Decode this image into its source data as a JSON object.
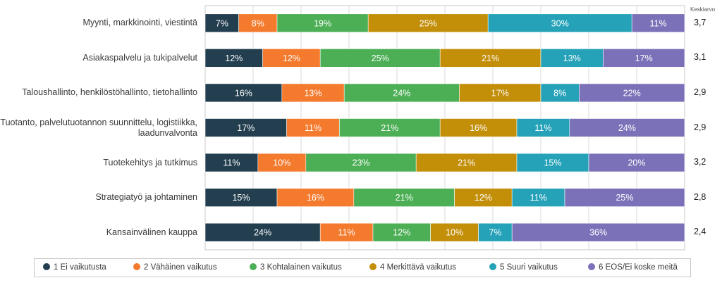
{
  "chart_data": {
    "type": "bar",
    "orientation": "horizontal",
    "stacked": true,
    "normalized_percent": true,
    "categories": [
      "Myynti, markkinointi, viestintä",
      "Asiakaspalvelu ja tukipalvelut",
      "Taloushallinto, henkilöstöhallinto, tietohallinto",
      "Tuotanto, palvelutuotannon suunnittelu, logistiikka, laadunvalvonta",
      "Tuotekehitys ja tutkimus",
      "Strategiatyö ja johtaminen",
      "Kansainvälinen kauppa"
    ],
    "category_lines": [
      [
        "Myynti, markkinointi, viestintä"
      ],
      [
        "Asiakaspalvelu ja tukipalvelut"
      ],
      [
        "Taloushallinto, henkilöstöhallinto, tietohallinto"
      ],
      [
        "Tuotanto, palvelutuotannon suunnittelu, logistiikka,",
        "laadunvalvonta"
      ],
      [
        "Tuotekehitys ja tutkimus"
      ],
      [
        "Strategiatyö ja johtaminen"
      ],
      [
        "Kansainvälinen kauppa"
      ]
    ],
    "series": [
      {
        "name": "1 Ei vaikutusta",
        "color": "#223e4f",
        "values": [
          7,
          12,
          16,
          17,
          11,
          15,
          24
        ]
      },
      {
        "name": "2 Vähäinen vaikutus",
        "color": "#f47a2d",
        "values": [
          8,
          12,
          13,
          11,
          10,
          16,
          11
        ]
      },
      {
        "name": "3 Kohtalainen vaikutus",
        "color": "#4caf55",
        "values": [
          19,
          25,
          24,
          21,
          23,
          21,
          12
        ]
      },
      {
        "name": "4 Merkittävä vaikutus",
        "color": "#c38e08",
        "values": [
          25,
          21,
          17,
          16,
          21,
          12,
          10
        ]
      },
      {
        "name": "5 Suuri vaikutus",
        "color": "#25a2b8",
        "values": [
          30,
          13,
          8,
          11,
          15,
          11,
          7
        ]
      },
      {
        "name": "6 EOS/Ei koske meitä",
        "color": "#7b71b8",
        "values": [
          11,
          17,
          22,
          24,
          20,
          25,
          36
        ]
      }
    ],
    "mean_header": "Keskiarvo",
    "means": [
      "3,7",
      "3,1",
      "2,9",
      "2,9",
      "3,2",
      "2,8",
      "2,4"
    ],
    "xlim": [
      0,
      100
    ],
    "grid": true,
    "legend_position": "bottom"
  }
}
